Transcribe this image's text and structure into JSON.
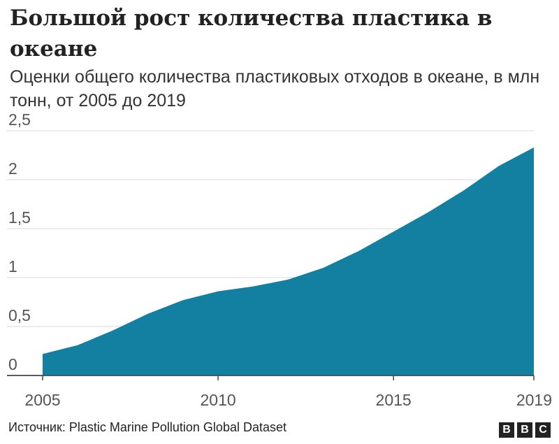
{
  "chart_data": {
    "type": "area",
    "title": "Большой рост количества пластика в океане",
    "subtitle": "Оценки общего количества пластиковых отходов в океане, в млн тонн, от 2005 до 2019",
    "x": [
      2005,
      2006,
      2007,
      2008,
      2009,
      2010,
      2011,
      2012,
      2013,
      2014,
      2015,
      2016,
      2017,
      2018,
      2019
    ],
    "values": [
      0.22,
      0.31,
      0.46,
      0.63,
      0.77,
      0.86,
      0.91,
      0.98,
      1.1,
      1.27,
      1.47,
      1.67,
      1.89,
      2.14,
      2.33
    ],
    "xlim": [
      2005,
      2019
    ],
    "ylim": [
      0,
      2.5
    ],
    "x_ticks": [
      2005,
      2010,
      2015,
      2019
    ],
    "x_tick_labels": [
      "2005",
      "2010",
      "2015",
      "2019"
    ],
    "y_ticks": [
      0,
      0.5,
      1,
      1.5,
      2,
      2.5
    ],
    "y_tick_labels": [
      "0",
      "0,5",
      "1",
      "1,5",
      "2",
      "2,5"
    ],
    "grid": true,
    "fill_color": "#1380A1"
  },
  "footer": {
    "source": "Источник: Plastic Marine Pollution Global Dataset",
    "logo_letters": [
      "B",
      "B",
      "C"
    ]
  }
}
